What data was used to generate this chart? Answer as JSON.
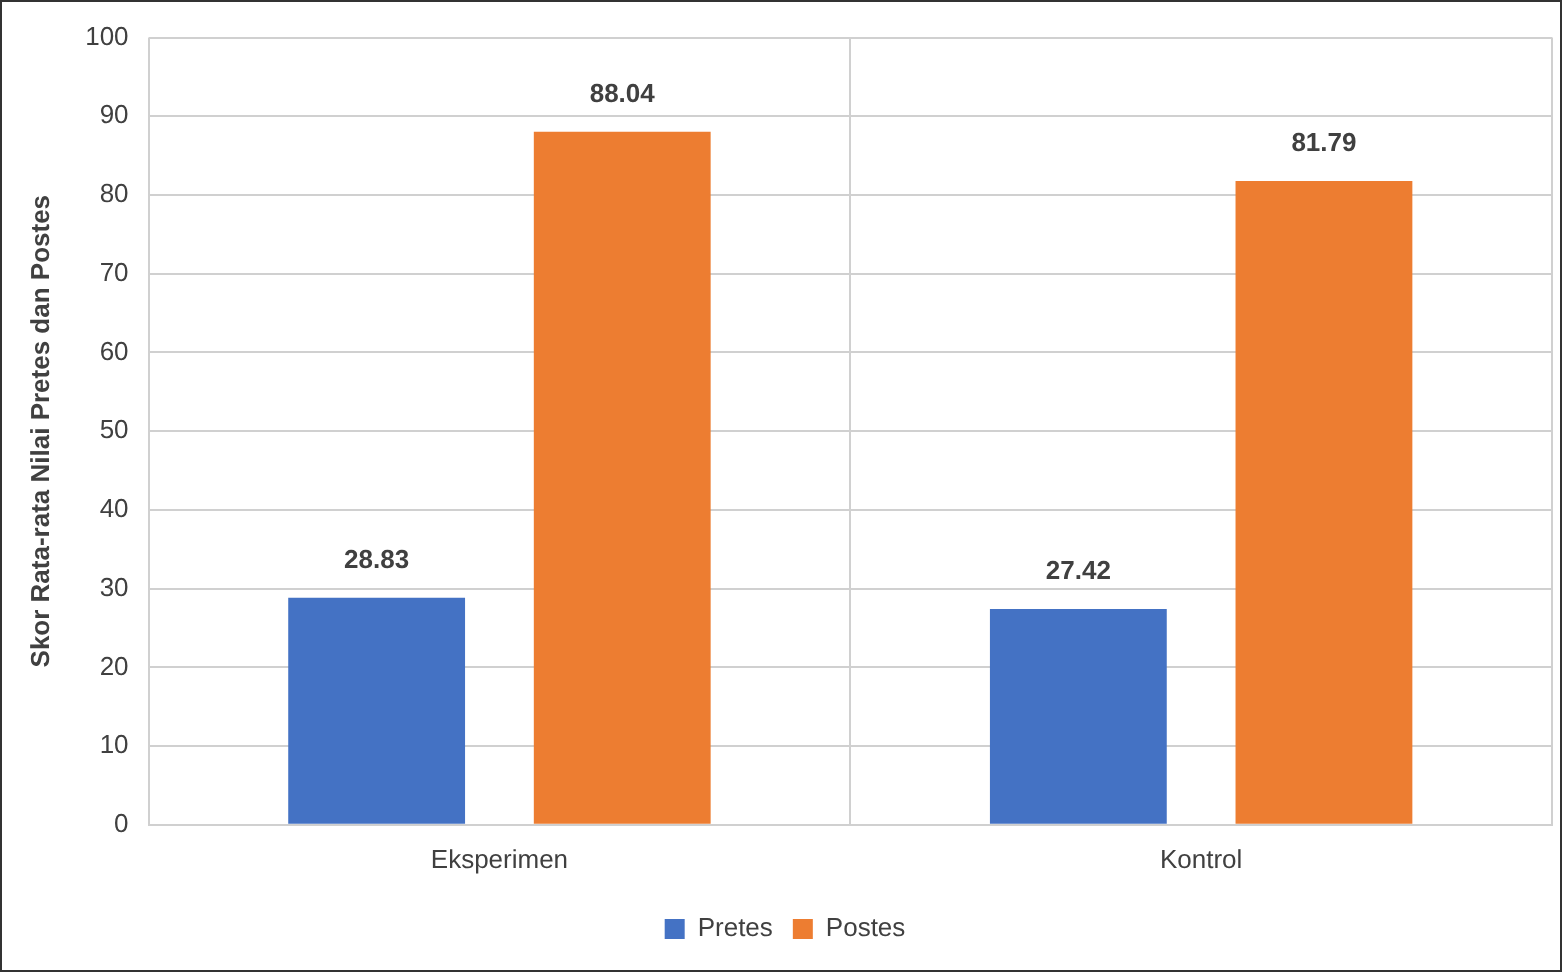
{
  "chart_data": {
    "type": "bar",
    "ylabel": "Skor Rata-rata Nilai Pretes dan Postes",
    "categories": [
      "Eksperimen",
      "Kontrol"
    ],
    "series": [
      {
        "name": "Pretes",
        "color": "#4472c4",
        "values": [
          28.83,
          27.42
        ]
      },
      {
        "name": "Postes",
        "color": "#ed7d31",
        "values": [
          88.04,
          81.79
        ]
      }
    ],
    "ylim": [
      0,
      100
    ],
    "yticks": [
      0,
      10,
      20,
      30,
      40,
      50,
      60,
      70,
      80,
      90,
      100
    ],
    "grid": true,
    "legend": "bottom",
    "data_labels": true
  }
}
